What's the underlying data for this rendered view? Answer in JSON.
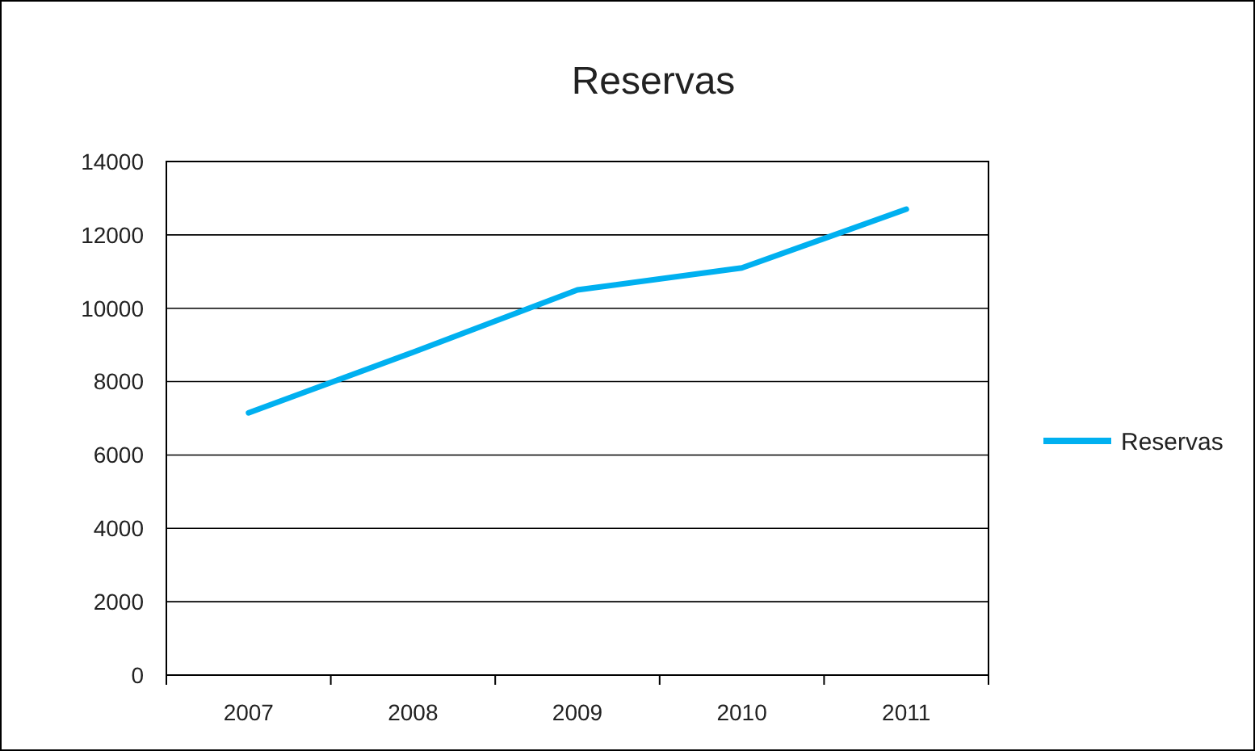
{
  "chart_data": {
    "type": "line",
    "title": "Reservas",
    "categories": [
      "2007",
      "2008",
      "2009",
      "2010",
      "2011"
    ],
    "series": [
      {
        "name": "Reservas",
        "color": "#00b0f0",
        "values": [
          7150,
          8800,
          10500,
          11100,
          12700
        ]
      }
    ],
    "ylim": [
      0,
      14000
    ],
    "yticks": [
      0,
      2000,
      4000,
      6000,
      8000,
      10000,
      12000,
      14000
    ],
    "grid": "y",
    "legend": "right",
    "marker": "none",
    "line_style": "solid"
  }
}
